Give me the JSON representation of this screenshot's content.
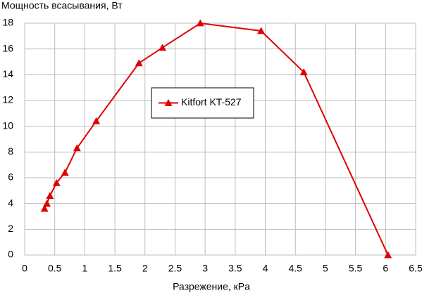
{
  "chart_data": {
    "type": "line",
    "ylabel": "Мощность всасывания, Вт",
    "xlabel": "Разрежение, кPa",
    "series": [
      {
        "name": "Kitfort KT-527",
        "color": "#e00000",
        "x": [
          0.33,
          0.37,
          0.42,
          0.53,
          0.67,
          0.87,
          1.19,
          1.9,
          2.29,
          2.92,
          3.93,
          4.64,
          6.04
        ],
        "values": [
          3.6,
          4.0,
          4.6,
          5.6,
          6.4,
          8.3,
          10.4,
          14.9,
          16.1,
          18.0,
          17.4,
          14.2,
          0
        ]
      }
    ],
    "xlim": [
      0,
      6.5
    ],
    "xticks": [
      0,
      0.5,
      1,
      1.5,
      2,
      2.5,
      3,
      3.5,
      4,
      4.5,
      5,
      5.5,
      6,
      6.5
    ],
    "ylim": [
      0,
      18
    ],
    "yticks": [
      0,
      2,
      4,
      6,
      8,
      10,
      12,
      14,
      16,
      18
    ],
    "grid": true,
    "legend": "center"
  }
}
